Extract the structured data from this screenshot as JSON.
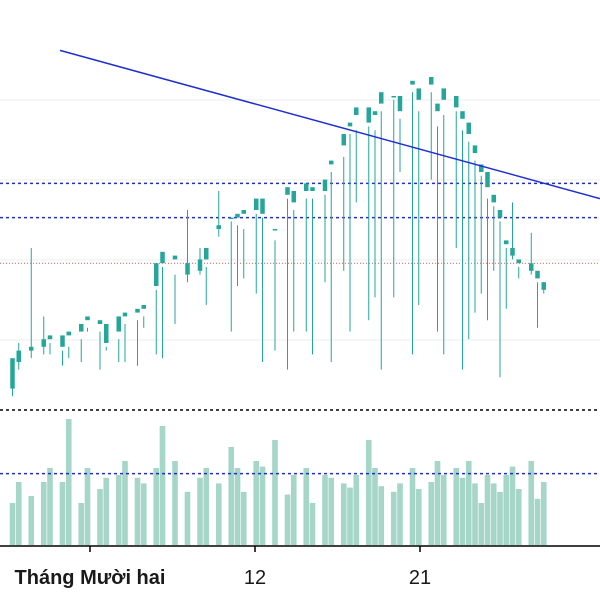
{
  "chart_data": {
    "type": "candlestick",
    "colors": {
      "up": "#26a69a",
      "down": "#ef5350",
      "volume_up": "#a5d6c8",
      "volume_down": "#f5b7b6",
      "trendline": "#1f2fd0",
      "support_levels": "#1f2fd0",
      "last_price_line": "#ef5350",
      "separator": "#000000",
      "grid": "#eeeeee",
      "axis": "#000000"
    },
    "x_axis": {
      "type": "date-index",
      "domain": [
        -5,
        75
      ],
      "tick_labels": [
        {
          "x": 7,
          "label": "Tháng Mười hai",
          "bold": true
        },
        {
          "x": 29,
          "label": "12",
          "bold": false
        },
        {
          "x": 51,
          "label": "21",
          "bold": false
        }
      ]
    },
    "price_axis": {
      "domain": [
        0,
        100
      ],
      "visible": false
    },
    "volume_axis": {
      "domain": [
        0,
        100
      ],
      "visible": false
    },
    "trendline": {
      "x1": 3,
      "y1": 92,
      "x2": 75,
      "y2": 53
    },
    "horizontal_levels": {
      "support_upper": 57,
      "support_lower": 48,
      "last_price": 36
    },
    "volume_reference_level": 51,
    "candles": [
      [
        2,
        3,
        11,
        1,
        8,
        30
      ],
      [
        3,
        10,
        13,
        8,
        15,
        45
      ],
      [
        5,
        13,
        14,
        11,
        40,
        35
      ],
      [
        7,
        14,
        16,
        12,
        22,
        45
      ],
      [
        8,
        16,
        17,
        15,
        12,
        55
      ],
      [
        10,
        14,
        17,
        13,
        9,
        45
      ],
      [
        11,
        17,
        18,
        14,
        11,
        90
      ],
      [
        13,
        18,
        20,
        16,
        10,
        30
      ],
      [
        14,
        21,
        22,
        19,
        18,
        55
      ],
      [
        16,
        20,
        21,
        18,
        8,
        40
      ],
      [
        17,
        15,
        20,
        14,
        13,
        48
      ],
      [
        19,
        18,
        22,
        16,
        10,
        50
      ],
      [
        20,
        22,
        23,
        20,
        10,
        60
      ],
      [
        22,
        23,
        24,
        21,
        9,
        48
      ],
      [
        23,
        24,
        25,
        22,
        19,
        44
      ],
      [
        25,
        30,
        36,
        29,
        12,
        55
      ],
      [
        26,
        36,
        39,
        35,
        11,
        85
      ],
      [
        28,
        37,
        38,
        33,
        20,
        60
      ],
      [
        30,
        33,
        36,
        31,
        50,
        38
      ],
      [
        32,
        34,
        37,
        33,
        40,
        48
      ],
      [
        33,
        37,
        40,
        35,
        25,
        55
      ],
      [
        35,
        45,
        46,
        43,
        55,
        44
      ],
      [
        37,
        48,
        48,
        47,
        18,
        70
      ],
      [
        38,
        48,
        49,
        46,
        30,
        55
      ],
      [
        39,
        49,
        50,
        45,
        32,
        38
      ],
      [
        41,
        50,
        53,
        49,
        28,
        60
      ],
      [
        42,
        49,
        53,
        48,
        10,
        56
      ],
      [
        44,
        45,
        45,
        42,
        13,
        75
      ],
      [
        46,
        54,
        56,
        53,
        8,
        36
      ],
      [
        47,
        52,
        55,
        50,
        18,
        50
      ],
      [
        49,
        55,
        57,
        53,
        18,
        55
      ],
      [
        50,
        55,
        56,
        53,
        12,
        30
      ],
      [
        52,
        55,
        58,
        54,
        31,
        50
      ],
      [
        53,
        62,
        63,
        60,
        10,
        48
      ],
      [
        55,
        67,
        70,
        64,
        34,
        44
      ],
      [
        56,
        72,
        73,
        70,
        18,
        41
      ],
      [
        57,
        75,
        77,
        71,
        52,
        50
      ],
      [
        59,
        73,
        77,
        72,
        21,
        75
      ],
      [
        60,
        75,
        76,
        71,
        27,
        55
      ],
      [
        61,
        78,
        81,
        76,
        8,
        42
      ],
      [
        63,
        80,
        80,
        79,
        27,
        38
      ],
      [
        64,
        76,
        80,
        74,
        60,
        44
      ],
      [
        66,
        83,
        84,
        81,
        12,
        55
      ],
      [
        67,
        79,
        82,
        76,
        25,
        40
      ],
      [
        69,
        83,
        85,
        81,
        58,
        45
      ],
      [
        70,
        76,
        78,
        72,
        18,
        60
      ],
      [
        71,
        79,
        82,
        75,
        12,
        50
      ],
      [
        73,
        77,
        80,
        76,
        40,
        55
      ],
      [
        74,
        74,
        76,
        71,
        8,
        48
      ],
      [
        75,
        70,
        73,
        68,
        16,
        60
      ],
      [
        76,
        65,
        67,
        63,
        23,
        44
      ],
      [
        77,
        60,
        62,
        59,
        28,
        30
      ],
      [
        78,
        56,
        60,
        53,
        21,
        50
      ],
      [
        79,
        52,
        54,
        51,
        34,
        44
      ],
      [
        80,
        48,
        50,
        47,
        6,
        38
      ],
      [
        81,
        41,
        42,
        40,
        24,
        50
      ],
      [
        82,
        38,
        40,
        37,
        52,
        56
      ],
      [
        83,
        36,
        37,
        35,
        32,
        40
      ],
      [
        85,
        34,
        36,
        33,
        44,
        60
      ],
      [
        86,
        32,
        34,
        31,
        19,
        33
      ],
      [
        87,
        29,
        31,
        28,
        31,
        45
      ]
    ]
  }
}
